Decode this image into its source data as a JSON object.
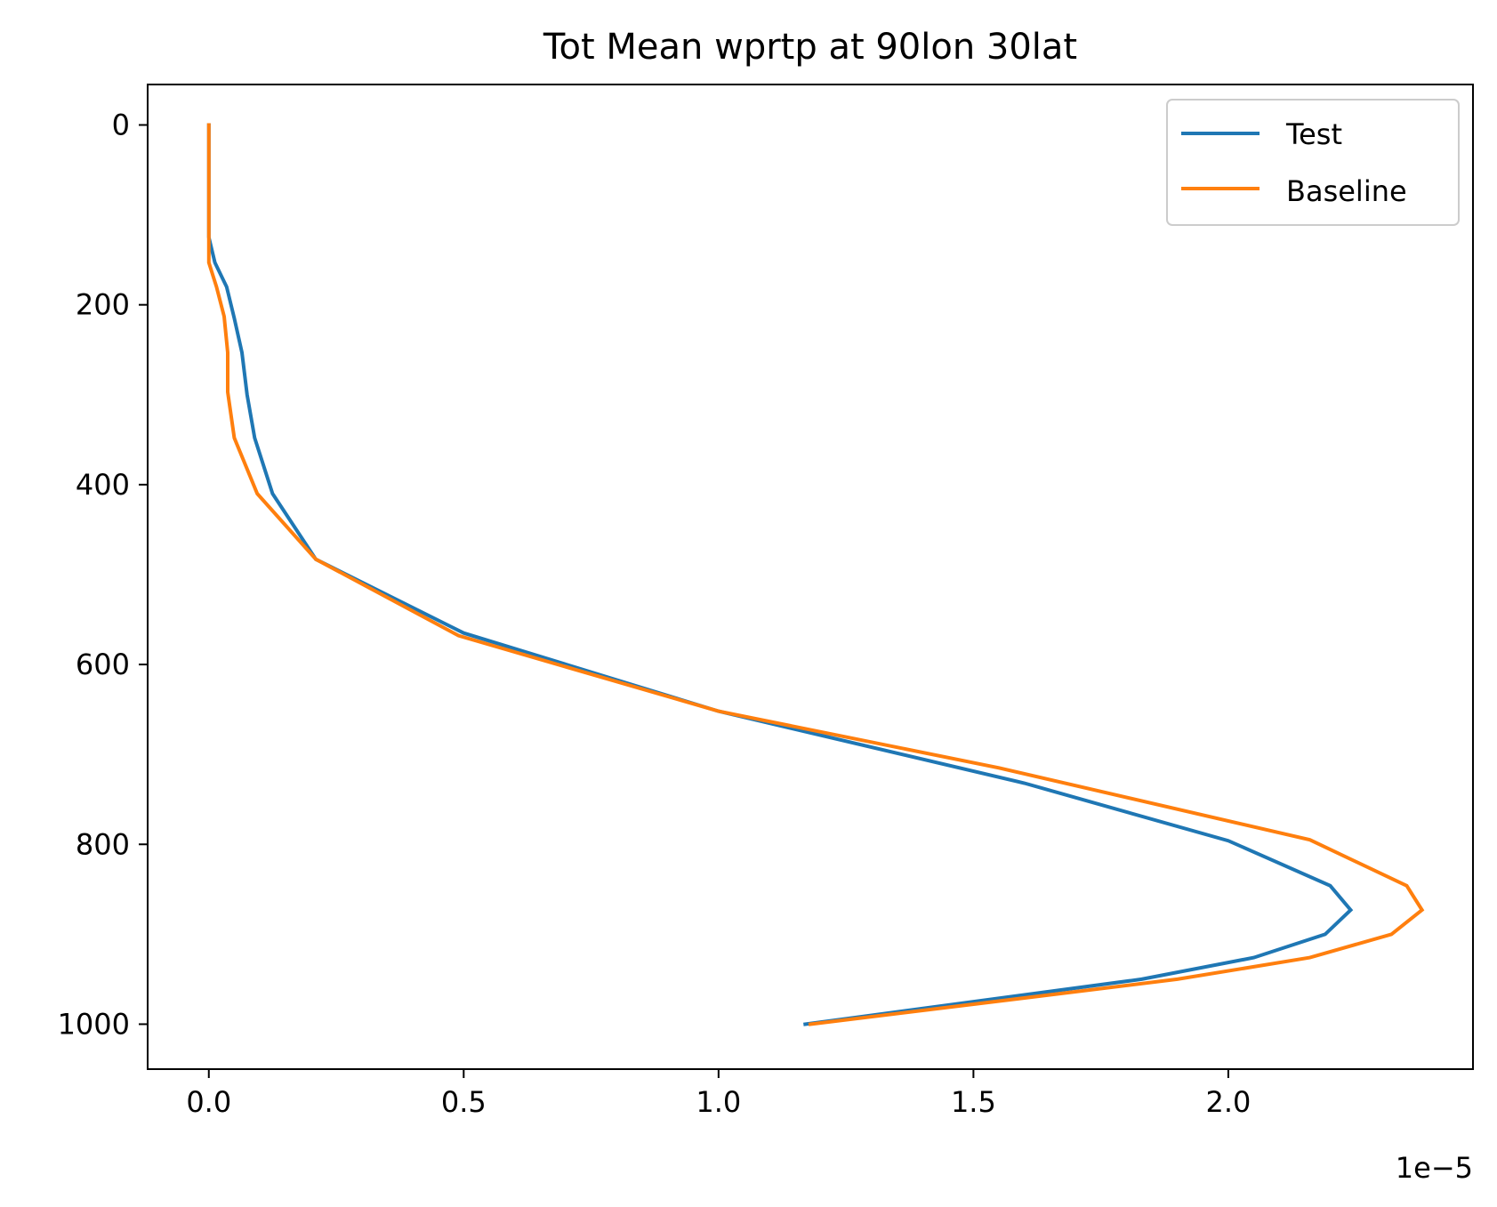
{
  "chart_data": {
    "type": "line",
    "title": "Tot Mean wprtp at 90lon 30lat",
    "xlabel": "",
    "ylabel": "",
    "x_offset_label": "1e−5",
    "xlim": [
      -0.12,
      2.48
    ],
    "ylim": [
      1050,
      -45
    ],
    "y_inverted": true,
    "grid": false,
    "legend_position": "top-right",
    "x_ticks": [
      0.0,
      0.5,
      1.0,
      1.5,
      2.0
    ],
    "x_tick_labels": [
      "0.0",
      "0.5",
      "1.0",
      "1.5",
      "2.0"
    ],
    "y_ticks": [
      0,
      200,
      400,
      600,
      800,
      1000
    ],
    "y_tick_labels": [
      "0",
      "200",
      "400",
      "600",
      "800",
      "1000"
    ],
    "series": [
      {
        "name": "Test",
        "color": "#1f77b4",
        "points": [
          [
            0.0,
            0
          ],
          [
            0.0,
            50
          ],
          [
            0.0,
            100
          ],
          [
            0.0,
            125
          ],
          [
            0.012,
            153
          ],
          [
            0.035,
            180
          ],
          [
            0.05,
            215
          ],
          [
            0.065,
            253
          ],
          [
            0.075,
            300
          ],
          [
            0.09,
            348
          ],
          [
            0.125,
            410
          ],
          [
            0.21,
            483
          ],
          [
            0.5,
            565
          ],
          [
            1.0,
            652
          ],
          [
            1.6,
            732
          ],
          [
            2.0,
            796
          ],
          [
            2.2,
            846
          ],
          [
            2.24,
            873
          ],
          [
            2.19,
            900
          ],
          [
            2.05,
            926
          ],
          [
            1.83,
            950
          ],
          [
            1.17,
            1000
          ]
        ]
      },
      {
        "name": "Baseline",
        "color": "#ff7f0e",
        "points": [
          [
            0.0,
            0
          ],
          [
            0.0,
            50
          ],
          [
            0.0,
            100
          ],
          [
            0.0,
            153
          ],
          [
            0.015,
            180
          ],
          [
            0.03,
            213
          ],
          [
            0.037,
            253
          ],
          [
            0.037,
            297
          ],
          [
            0.05,
            348
          ],
          [
            0.095,
            410
          ],
          [
            0.21,
            483
          ],
          [
            0.49,
            568
          ],
          [
            1.0,
            652
          ],
          [
            1.55,
            715
          ],
          [
            2.16,
            795
          ],
          [
            2.35,
            846
          ],
          [
            2.38,
            873
          ],
          [
            2.32,
            900
          ],
          [
            2.16,
            926
          ],
          [
            1.9,
            950
          ],
          [
            1.18,
            1000
          ]
        ]
      }
    ]
  }
}
